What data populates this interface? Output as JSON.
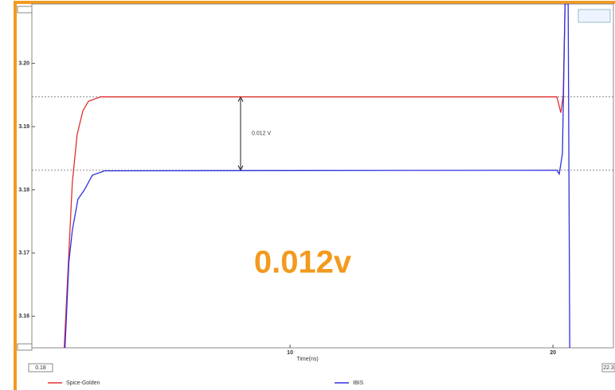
{
  "chart_data": {
    "type": "line",
    "x_label": "Time(ns)",
    "xlim": [
      0.18,
      22.3
    ],
    "xticks": [
      10,
      20
    ],
    "ylim": [
      3.155,
      3.2094
    ],
    "yticks": [
      3.16,
      3.17,
      3.18,
      {
        "value": 3.2,
        "label": "3.20"
      },
      3.19
    ],
    "reference_lines": [
      3.1947,
      3.1831
    ],
    "annotation": "0.012 V",
    "highlight": "0.012v",
    "series": [
      {
        "name": "Spice-Golden",
        "color": "#e03030",
        "x": [
          1.41,
          1.57,
          1.72,
          1.9,
          2.12,
          2.33,
          2.79,
          20.15,
          20.24,
          20.3,
          20.39,
          20.46
        ],
        "values": [
          3.155,
          3.1686,
          3.1812,
          3.1887,
          3.1925,
          3.194,
          3.1947,
          3.1947,
          3.1932,
          3.1922,
          3.195,
          3.2094
        ]
      },
      {
        "name": "IBIS",
        "color": "#3030e0",
        "x": [
          1.44,
          1.59,
          1.72,
          1.93,
          2.18,
          2.48,
          2.95,
          20.15,
          20.24,
          20.36,
          20.46,
          20.58,
          20.64
        ],
        "values": [
          3.155,
          3.1686,
          3.1736,
          3.1785,
          3.18,
          3.1823,
          3.183,
          3.1831,
          3.1825,
          3.1857,
          3.2094,
          3.2094,
          3.155
        ]
      }
    ]
  }
}
